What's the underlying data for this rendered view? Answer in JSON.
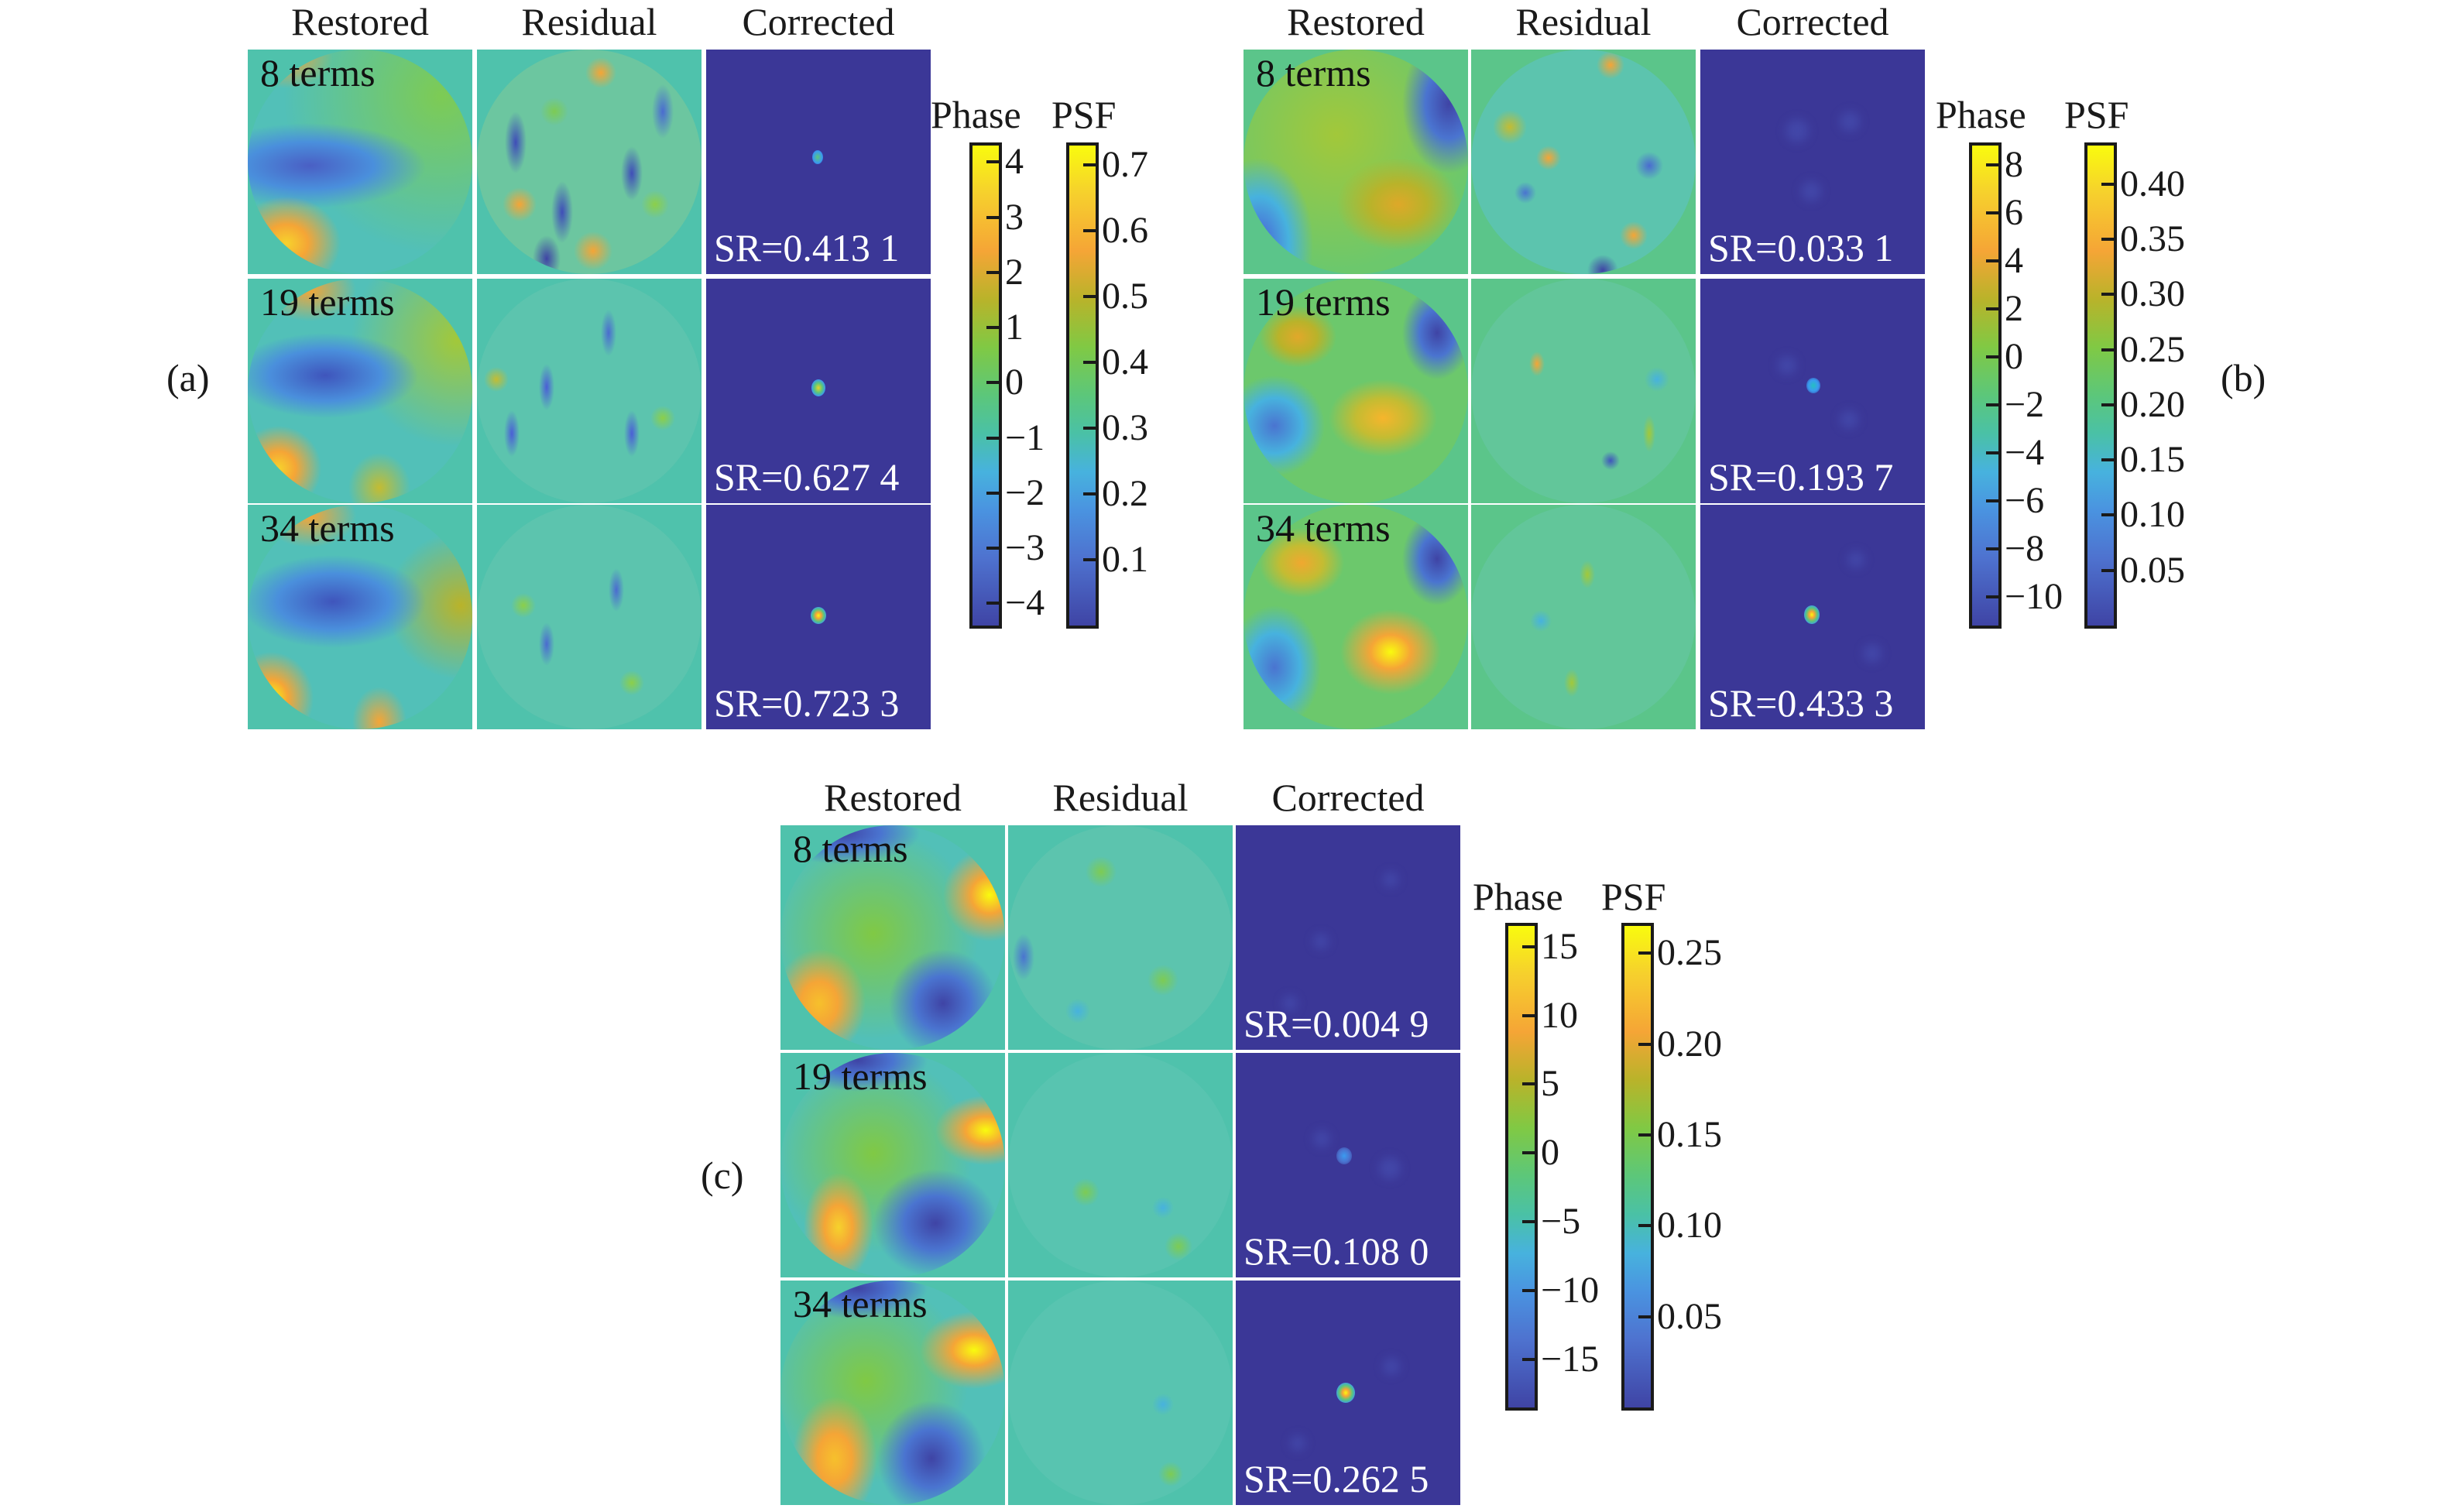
{
  "figure": {
    "column_headers": [
      "Restored",
      "Residual",
      "Corrected"
    ],
    "row_labels": [
      "8 terms",
      "19 terms",
      "34 terms"
    ],
    "panels": [
      {
        "label": "(a)",
        "sr_values": [
          "SR=0.413 1",
          "SR=0.627 4",
          "SR=0.723 3"
        ],
        "colorbars": {
          "phase": {
            "title": "Phase",
            "min": -4.4,
            "max": 4.3,
            "ticks": [
              4,
              3,
              2,
              1,
              0,
              -1,
              -2,
              -3,
              -4
            ],
            "tick_labels": [
              "4",
              "3",
              "2",
              "1",
              "0",
              "−1",
              "−2",
              "−3",
              "−4"
            ]
          },
          "psf": {
            "title": "PSF",
            "min": 0.0,
            "max": 0.73,
            "ticks": [
              0.7,
              0.6,
              0.5,
              0.4,
              0.3,
              0.2,
              0.1
            ],
            "tick_labels": [
              "0.7",
              "0.6",
              "0.5",
              "0.4",
              "0.3",
              "0.2",
              "0.1"
            ]
          }
        }
      },
      {
        "label": "(b)",
        "sr_values": [
          "SR=0.033 1",
          "SR=0.193 7",
          "SR=0.433 3"
        ],
        "colorbars": {
          "phase": {
            "title": "Phase",
            "min": -11.2,
            "max": 8.8,
            "ticks": [
              8,
              6,
              4,
              2,
              0,
              -2,
              -4,
              -6,
              -8,
              -10
            ],
            "tick_labels": [
              "8",
              "6",
              "4",
              "2",
              "0",
              "−2",
              "−4",
              "−6",
              "−8",
              "−10"
            ]
          },
          "psf": {
            "title": "PSF",
            "min": 0.0,
            "max": 0.435,
            "ticks": [
              0.4,
              0.35,
              0.3,
              0.25,
              0.2,
              0.15,
              0.1,
              0.05
            ],
            "tick_labels": [
              "0.40",
              "0.35",
              "0.30",
              "0.25",
              "0.20",
              "0.15",
              "0.10",
              "0.05"
            ]
          }
        }
      },
      {
        "label": "(c)",
        "sr_values": [
          "SR=0.004 9",
          "SR=0.108 0",
          "SR=0.262 5"
        ],
        "colorbars": {
          "phase": {
            "title": "Phase",
            "min": -18.5,
            "max": 16.5,
            "ticks": [
              15,
              10,
              5,
              0,
              -5,
              -10,
              -15
            ],
            "tick_labels": [
              "15",
              "10",
              "5",
              "0",
              "−5",
              "−10",
              "−15"
            ]
          },
          "psf": {
            "title": "PSF",
            "min": 0.0,
            "max": 0.265,
            "ticks": [
              0.25,
              0.2,
              0.15,
              0.1,
              0.05
            ],
            "tick_labels": [
              "0.25",
              "0.20",
              "0.15",
              "0.10",
              "0.05"
            ]
          }
        }
      }
    ],
    "colormap": [
      "#3e26a8",
      "#4a5ed6",
      "#3a9bf0",
      "#25c0c0",
      "#6ccc6c",
      "#c4bc32",
      "#f8ba3c",
      "#f9fb0e"
    ]
  }
}
